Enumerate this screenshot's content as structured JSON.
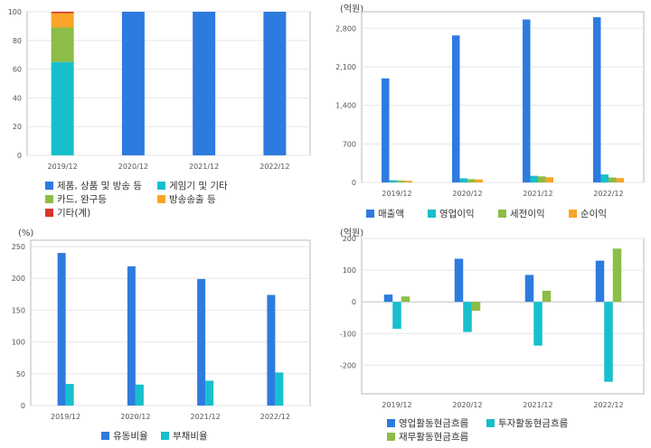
{
  "colors": {
    "blue": "#2e7bdf",
    "cyan": "#17bfcc",
    "green": "#8cbd47",
    "orange": "#f8a52a",
    "red": "#d9342b",
    "grid": "#e6e6e6",
    "frame": "#b8b8b8"
  },
  "chart_data": [
    {
      "id": "revenue-mix",
      "type": "bar",
      "stacked": true,
      "unit": "",
      "categories": [
        "2019/12",
        "2020/12",
        "2021/12",
        "2022/12"
      ],
      "ylim": [
        0,
        100
      ],
      "yticks": [
        0,
        20,
        40,
        60,
        80,
        100
      ],
      "series": [
        {
          "name": "제품, 상품 및 방송 등",
          "color": "#2e7bdf",
          "values": [
            0,
            100,
            100,
            100
          ]
        },
        {
          "name": "게임기 및 기타",
          "color": "#17bfcc",
          "values": [
            65,
            0,
            0,
            0
          ]
        },
        {
          "name": "카드, 완구등",
          "color": "#8cbd47",
          "values": [
            24,
            0,
            0,
            0
          ]
        },
        {
          "name": "방송송출 등",
          "color": "#f8a52a",
          "values": [
            10,
            0,
            0,
            0
          ]
        },
        {
          "name": "기타(계)",
          "color": "#d9342b",
          "values": [
            1,
            0,
            0,
            0
          ]
        }
      ],
      "legend_position": "bottom"
    },
    {
      "id": "income",
      "type": "bar",
      "unit": "(억원)",
      "categories": [
        "2019/12",
        "2020/12",
        "2021/12",
        "2022/12"
      ],
      "ylim": [
        0,
        3100
      ],
      "yticks": [
        0,
        700,
        1400,
        2100,
        2800
      ],
      "ytick_labels": [
        "0",
        "700",
        "1,400",
        "2,100",
        "2,800"
      ],
      "series": [
        {
          "name": "매출액",
          "color": "#2e7bdf",
          "values": [
            1890,
            2670,
            2960,
            3000
          ]
        },
        {
          "name": "영업이익",
          "color": "#17bfcc",
          "values": [
            40,
            75,
            120,
            145
          ]
        },
        {
          "name": "세전이익",
          "color": "#8cbd47",
          "values": [
            35,
            60,
            110,
            90
          ]
        },
        {
          "name": "순이익",
          "color": "#f8a52a",
          "values": [
            30,
            55,
            95,
            80
          ]
        }
      ],
      "legend_position": "bottom"
    },
    {
      "id": "ratios",
      "type": "bar",
      "unit": "(%)",
      "categories": [
        "2019/12",
        "2020/12",
        "2021/12",
        "2022/12"
      ],
      "ylim": [
        0,
        260
      ],
      "yticks": [
        0,
        50,
        100,
        150,
        200,
        250
      ],
      "ytick_labels": [
        "0",
        "50",
        "100",
        "150",
        "200",
        "250"
      ],
      "series": [
        {
          "name": "유동비율",
          "color": "#2e7bdf",
          "values": [
            240,
            219,
            199,
            174
          ]
        },
        {
          "name": "부채비율",
          "color": "#17bfcc",
          "values": [
            34,
            33,
            39,
            52
          ]
        }
      ],
      "legend_position": "bottom"
    },
    {
      "id": "cashflow",
      "type": "bar",
      "unit": "(억원)",
      "categories": [
        "2019/12",
        "2020/12",
        "2021/12",
        "2022/12"
      ],
      "ylim": [
        -290,
        200
      ],
      "yticks": [
        -200,
        -100,
        0,
        100,
        200
      ],
      "ytick_labels": [
        "-200",
        "-100",
        "0",
        "100",
        "200"
      ],
      "series": [
        {
          "name": "영업활동현금흐름",
          "color": "#2e7bdf",
          "values": [
            23,
            136,
            85,
            130
          ]
        },
        {
          "name": "투자활동현금흐름",
          "color": "#17bfcc",
          "values": [
            -85,
            -95,
            -138,
            -252
          ]
        },
        {
          "name": "재무활동현금흐름",
          "color": "#8cbd47",
          "values": [
            17,
            -28,
            35,
            168
          ]
        }
      ],
      "legend_position": "bottom"
    }
  ]
}
